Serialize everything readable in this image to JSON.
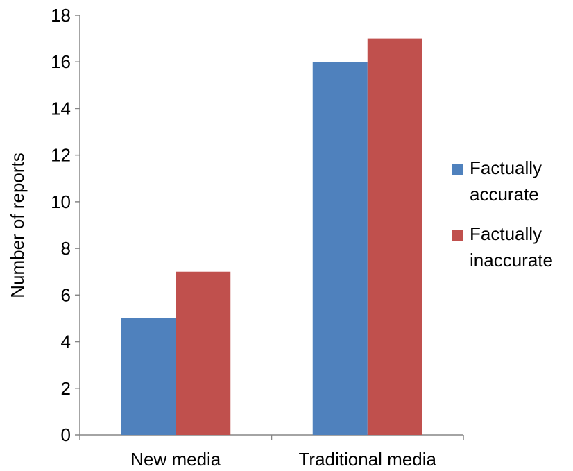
{
  "chart_data": {
    "type": "bar",
    "categories": [
      "New media",
      "Traditional media"
    ],
    "series": [
      {
        "name": "Factually accurate",
        "lines": [
          "Factually",
          "accurate"
        ],
        "values": [
          5,
          16
        ],
        "color": "#4f81bd"
      },
      {
        "name": "Factually inaccurate",
        "lines": [
          "Factually",
          "inaccurate"
        ],
        "values": [
          7,
          17
        ],
        "color": "#c0504d"
      }
    ],
    "title": "",
    "xlabel": "",
    "ylabel": "Number of reports",
    "ylim": [
      0,
      18
    ],
    "yticks": [
      0,
      2,
      4,
      6,
      8,
      10,
      12,
      14,
      16,
      18
    ],
    "grid": false,
    "legend": "right"
  }
}
